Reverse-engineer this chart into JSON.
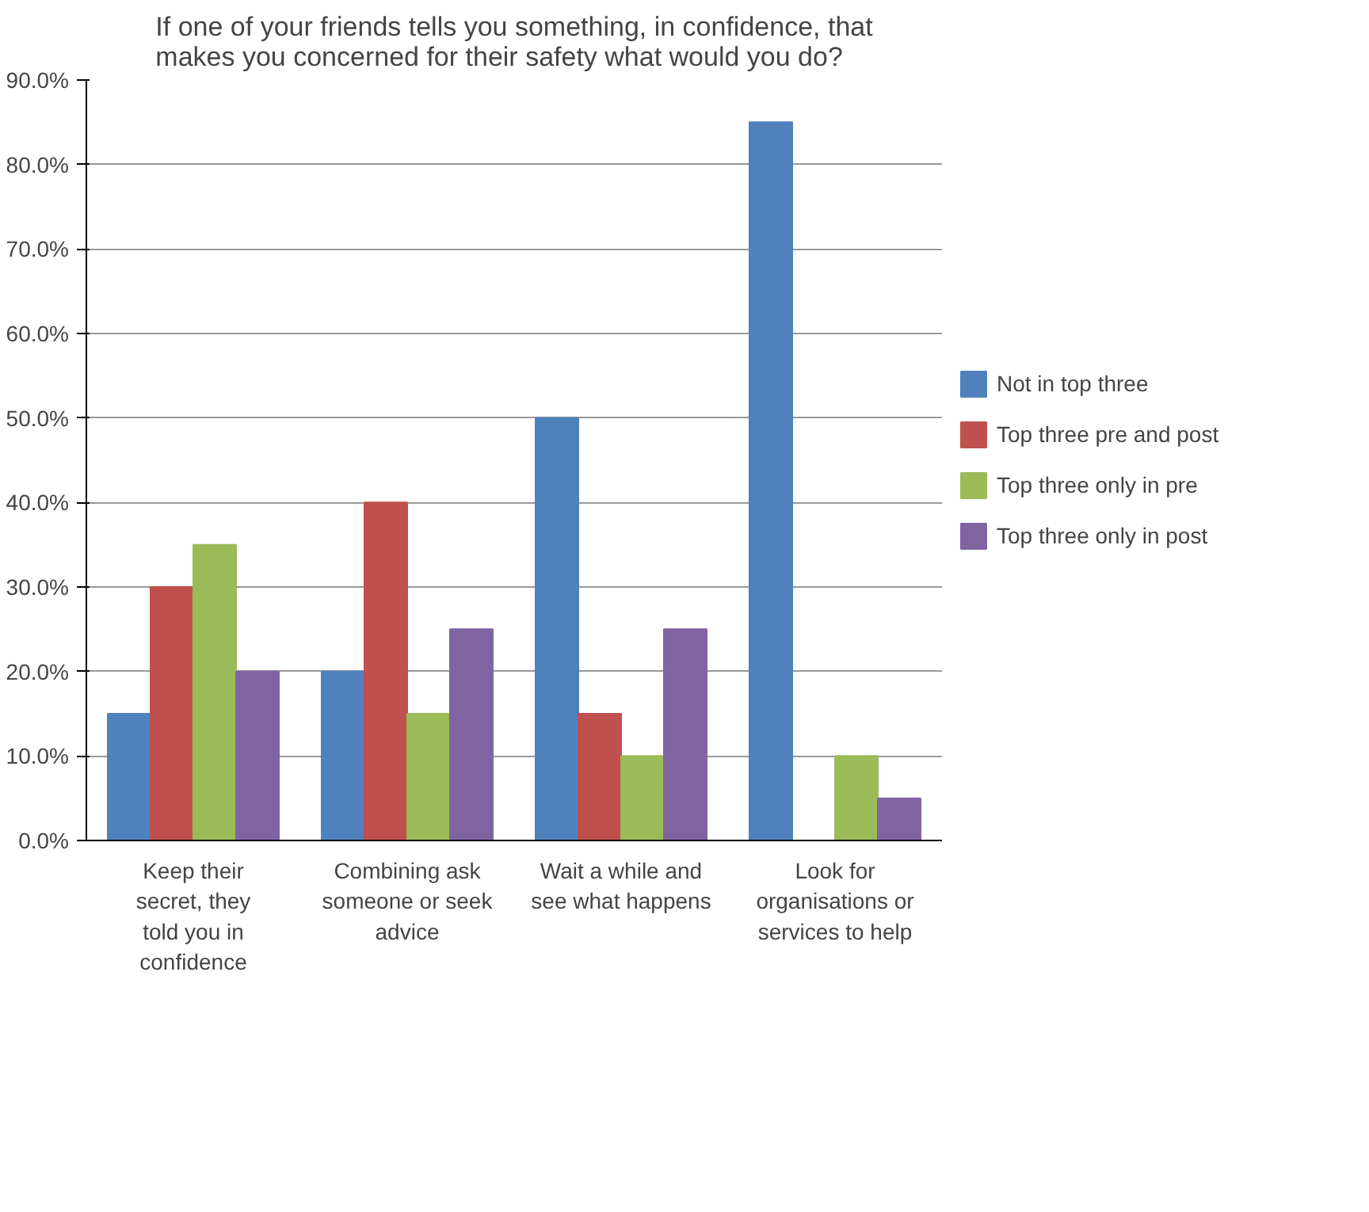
{
  "chart_data": {
    "type": "bar",
    "title": "If one of your friends tells you something, in confidence, that makes you concerned for their safety what would you do?",
    "categories": [
      "Keep their secret, they told you in confidence",
      "Combining ask someone or seek advice",
      "Wait a while and see what happens",
      "Look for organisations or services to help"
    ],
    "series": [
      {
        "name": "Not in top three",
        "color": "#4f81bd",
        "values": [
          15,
          20,
          50,
          85
        ]
      },
      {
        "name": "Top three pre and post",
        "color": "#c0504d",
        "values": [
          30,
          40,
          15,
          0
        ]
      },
      {
        "name": "Top three only in pre",
        "color": "#9bbb59",
        "values": [
          35,
          15,
          10,
          10
        ]
      },
      {
        "name": "Top three only in post",
        "color": "#8064a2",
        "values": [
          20,
          25,
          25,
          5
        ]
      }
    ],
    "ylim": [
      0,
      90
    ],
    "yticks": [
      {
        "value": 0,
        "label": "0.0%"
      },
      {
        "value": 10,
        "label": "10.0%"
      },
      {
        "value": 20,
        "label": "20.0%"
      },
      {
        "value": 30,
        "label": "30.0%"
      },
      {
        "value": 40,
        "label": "40.0%"
      },
      {
        "value": 50,
        "label": "50.0%"
      },
      {
        "value": 60,
        "label": "60.0%"
      },
      {
        "value": 70,
        "label": "70.0%"
      },
      {
        "value": 80,
        "label": "80.0%"
      },
      {
        "value": 90,
        "label": "90.0%"
      }
    ],
    "grid": "y",
    "legend": "right"
  }
}
